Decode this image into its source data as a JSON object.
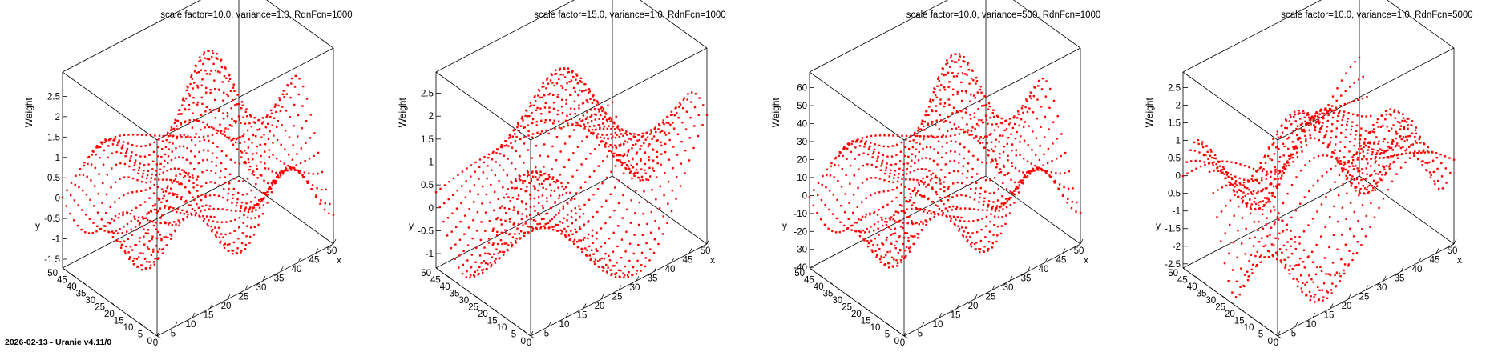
{
  "footer": "2026-02-13 - Uranie v4.11/0",
  "colors": {
    "points": "#ff0000",
    "frame": "#000000"
  },
  "chart_data": [
    {
      "type": "scatter",
      "title": "scale factor=10.0, variance=1.0, RdnFcn=1000",
      "xlabel": "x",
      "ylabel": "y",
      "zlabel": "Weight",
      "xlim": [
        0,
        50
      ],
      "ylim": [
        0,
        50
      ],
      "zlim": [
        -1.7,
        2.8
      ],
      "xticks": [
        0,
        5,
        10,
        15,
        20,
        25,
        30,
        35,
        40,
        45,
        50
      ],
      "yticks": [
        0,
        5,
        10,
        15,
        20,
        25,
        30,
        35,
        40,
        45,
        50
      ],
      "zticks": [
        -1.5,
        -1,
        -0.5,
        0,
        0.5,
        1,
        1.5,
        2,
        2.5
      ],
      "grid": {
        "nx": 41,
        "ny": 26,
        "step_x": 1.25,
        "step_y": 2.0
      },
      "surface": {
        "amp": 1.15,
        "fx": 0.42,
        "fy": 0.31,
        "phase": 0.0,
        "bump": 1.45,
        "bx": 30,
        "by": 34
      },
      "series": [
        {
          "name": "",
          "color": "#ff0000"
        }
      ]
    },
    {
      "type": "scatter",
      "title": "scale factor=15.0, variance=1.0, RdnFcn=1000",
      "xlabel": "x",
      "ylabel": "y",
      "zlabel": "Weight",
      "xlim": [
        0,
        50
      ],
      "ylim": [
        0,
        50
      ],
      "zlim": [
        -1.3,
        2.7
      ],
      "xticks": [
        0,
        5,
        10,
        15,
        20,
        25,
        30,
        35,
        40,
        45,
        50
      ],
      "yticks": [
        0,
        5,
        10,
        15,
        20,
        25,
        30,
        35,
        40,
        45,
        50
      ],
      "zticks": [
        -1,
        -0.5,
        0,
        0.5,
        1,
        1.5,
        2,
        2.5
      ],
      "grid": {
        "nx": 41,
        "ny": 26,
        "step_x": 1.25,
        "step_y": 2.0
      },
      "surface": {
        "amp": 1.1,
        "fx": 0.24,
        "fy": 0.19,
        "phase": 1.1,
        "bump": 0.6,
        "bx": 30,
        "by": 38
      },
      "series": [
        {
          "name": "",
          "color": "#ff0000"
        }
      ]
    },
    {
      "type": "scatter",
      "title": "scale factor=10.0, variance=500, RdnFcn=1000",
      "xlabel": "x",
      "ylabel": "y",
      "zlabel": "Weight",
      "xlim": [
        0,
        50
      ],
      "ylim": [
        0,
        50
      ],
      "zlim": [
        -40,
        62
      ],
      "xticks": [
        0,
        5,
        10,
        15,
        20,
        25,
        30,
        35,
        40,
        45,
        50
      ],
      "yticks": [
        0,
        5,
        10,
        15,
        20,
        25,
        30,
        35,
        40,
        45,
        50
      ],
      "zticks": [
        -40,
        -30,
        -20,
        -10,
        0,
        10,
        20,
        30,
        40,
        50,
        60
      ],
      "grid": {
        "nx": 41,
        "ny": 26,
        "step_x": 1.25,
        "step_y": 2.0
      },
      "surface": {
        "amp": 25,
        "fx": 0.42,
        "fy": 0.31,
        "phase": 0.0,
        "bump": 32,
        "bx": 30,
        "by": 34
      },
      "series": [
        {
          "name": "",
          "color": "#ff0000"
        }
      ]
    },
    {
      "type": "scatter",
      "title": "scale factor=10.0, variance=1.0, RdnFcn=5000",
      "xlabel": "x",
      "ylabel": "y",
      "zlabel": "Weight",
      "xlim": [
        0,
        50
      ],
      "ylim": [
        0,
        50
      ],
      "zlim": [
        -2.6,
        2.6
      ],
      "xticks": [
        0,
        5,
        10,
        15,
        20,
        25,
        30,
        35,
        40,
        45,
        50
      ],
      "yticks": [
        0,
        5,
        10,
        15,
        20,
        25,
        30,
        35,
        40,
        45,
        50
      ],
      "zticks": [
        -2.5,
        -2,
        -1.5,
        -1,
        -0.5,
        0,
        0.5,
        1,
        1.5,
        2,
        2.5
      ],
      "grid": {
        "nx": 41,
        "ny": 26,
        "step_x": 1.25,
        "step_y": 2.0
      },
      "surface": {
        "amp": 1.45,
        "fx": 0.33,
        "fy": 0.37,
        "phase": 2.2,
        "bump": 1.2,
        "bx": 28,
        "by": 30
      },
      "series": [
        {
          "name": "",
          "color": "#ff0000"
        }
      ]
    }
  ]
}
